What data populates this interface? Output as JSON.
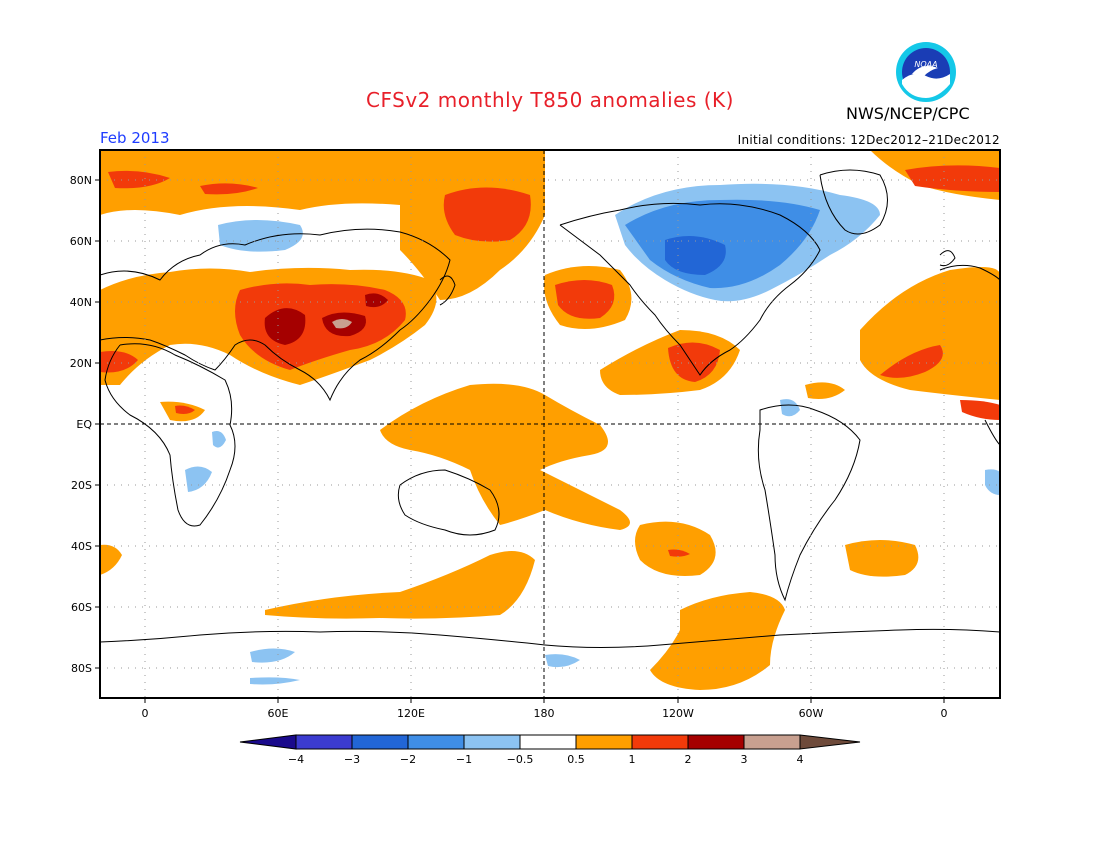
{
  "header": {
    "title": "CFSv2 monthly T850 anomalies (K)",
    "agency": "NWS/NCEP/CPC",
    "period": "Feb 2013",
    "initial_conditions": "Initial conditions: 12Dec2012–21Dec2012",
    "logo_text": "NOAA"
  },
  "map": {
    "lon_labels": [
      "0",
      "60E",
      "120E",
      "180",
      "120W",
      "60W",
      "0"
    ],
    "lat_labels": [
      "80N",
      "60N",
      "40N",
      "20N",
      "EQ",
      "20S",
      "40S",
      "60S",
      "80S"
    ],
    "variable": "850 hPa temperature anomaly",
    "units": "K"
  },
  "colorbar": {
    "tick_labels": [
      "−4",
      "−3",
      "−2",
      "−1",
      "−0.5",
      "0.5",
      "1",
      "2",
      "3",
      "4"
    ],
    "colors": [
      "#1a0a8c",
      "#3b3bd0",
      "#2266d6",
      "#3f8ee6",
      "#8cc3f2",
      "#ffffff",
      "#ff9f00",
      "#f23a0a",
      "#a50000",
      "#c8a090",
      "#6e4a3a"
    ]
  }
}
